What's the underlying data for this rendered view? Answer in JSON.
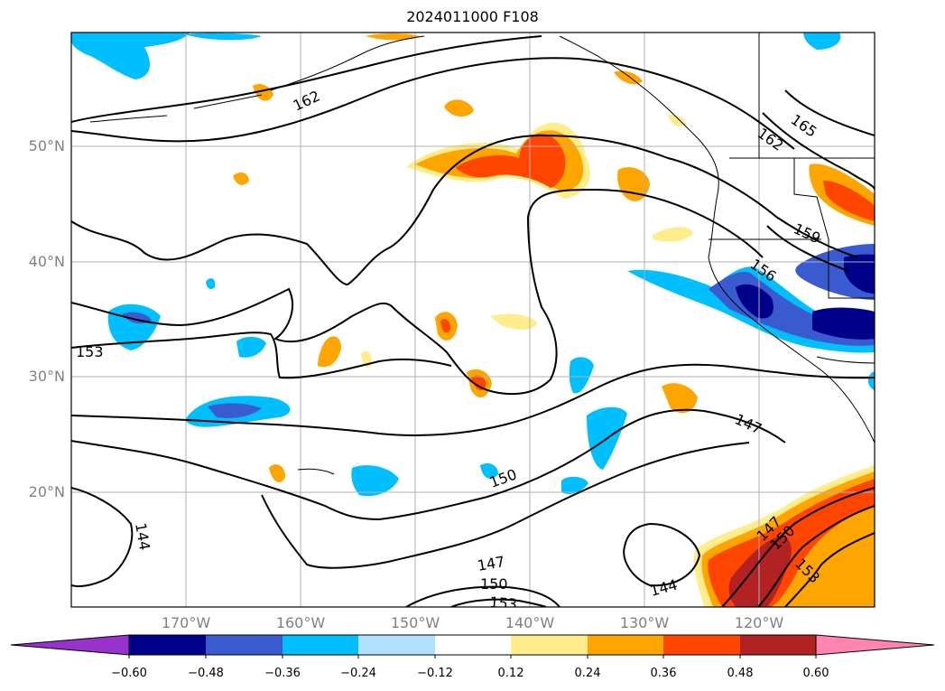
{
  "title": "2024011000 F108",
  "map": {
    "lat_labels": [
      "50°N",
      "40°N",
      "30°N",
      "20°N"
    ],
    "lon_labels": [
      "170°W",
      "160°W",
      "150°W",
      "140°W",
      "130°W",
      "120°W"
    ],
    "contour_labels": [
      "162",
      "165",
      "162",
      "159",
      "156",
      "153",
      "150",
      "147",
      "147",
      "150",
      "153",
      "144",
      "144",
      "147",
      "150",
      "153"
    ]
  },
  "colorbar": {
    "tick_labels": [
      "−0.60",
      "−0.48",
      "−0.36",
      "−0.24",
      "−0.12",
      "0.12",
      "0.24",
      "0.36",
      "0.48",
      "0.60"
    ],
    "colors": [
      "#9932CC",
      "#00008B",
      "#3A5BD0",
      "#00BFFF",
      "#B0E2FF",
      "#FFFFFF",
      "#FFEC8B",
      "#FFA500",
      "#FF4500",
      "#B22222",
      "#FF85B0"
    ]
  }
}
